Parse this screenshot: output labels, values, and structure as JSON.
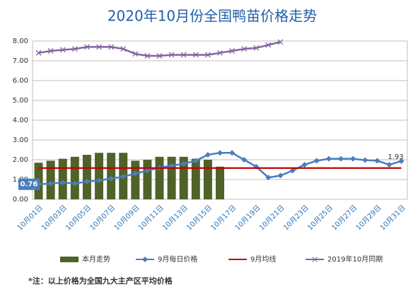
{
  "chart_data": {
    "type": "line",
    "title": "2020年10月份全国鸭苗价格走势",
    "note": "*注：以上价格为全国九大主产区平均价格",
    "categories": [
      "10月01日",
      null,
      "10月03日",
      null,
      "10月05日",
      null,
      "10月07日",
      null,
      "10月09日",
      null,
      "10月11日",
      null,
      "10月13日",
      null,
      "10月15日",
      null,
      "10月17日",
      null,
      "10月19日",
      null,
      "10月21日",
      null,
      "10月23日",
      null,
      "10月25日",
      null,
      "10月27日",
      null,
      "10月29日",
      null,
      "10月31日"
    ],
    "ylim": [
      0,
      8
    ],
    "yticks": [
      {
        "value": 0,
        "label": "0.00"
      },
      {
        "value": 1,
        "label": "1.00"
      },
      {
        "value": 2,
        "label": "2.00"
      },
      {
        "value": 3,
        "label": "3.00"
      },
      {
        "value": 4,
        "label": "4.00"
      },
      {
        "value": 5,
        "label": "5.00"
      },
      {
        "value": 6,
        "label": "6.00"
      },
      {
        "value": 7,
        "label": "7.00"
      },
      {
        "value": 8,
        "label": "8.00"
      }
    ],
    "grid": true,
    "legend": "bottom",
    "series": [
      {
        "name": "本月走势",
        "type": "bar",
        "color": "#4f6228",
        "values": [
          1.85,
          1.95,
          2.05,
          2.15,
          2.25,
          2.35,
          2.35,
          2.35,
          1.95,
          2.0,
          2.15,
          2.15,
          2.15,
          2.05,
          2.0,
          1.65,
          null,
          null,
          null,
          null,
          null,
          null,
          null,
          null,
          null,
          null,
          null,
          null,
          null,
          null,
          null
        ]
      },
      {
        "name": "9月每日价格",
        "type": "line",
        "marker": "diamond",
        "color": "#4a7ebb",
        "values": [
          0.76,
          0.8,
          0.85,
          0.8,
          0.9,
          0.95,
          1.05,
          1.15,
          1.3,
          1.45,
          1.6,
          1.7,
          1.8,
          1.95,
          2.25,
          2.35,
          2.35,
          2.0,
          1.65,
          1.1,
          1.2,
          1.45,
          1.75,
          1.95,
          2.05,
          2.05,
          2.05,
          1.98,
          1.95,
          1.75,
          1.93
        ],
        "value_labels": [
          "0.76",
          null,
          null,
          null,
          null,
          null,
          null,
          null,
          null,
          null,
          null,
          null,
          null,
          null,
          null,
          null,
          null,
          null,
          null,
          null,
          null,
          null,
          null,
          null,
          null,
          null,
          null,
          null,
          null,
          null,
          "1.93"
        ]
      },
      {
        "name": "9月均线",
        "type": "line",
        "marker": "none",
        "color": "#c00000",
        "values": [
          1.58,
          1.58,
          1.58,
          1.58,
          1.58,
          1.58,
          1.58,
          1.58,
          1.58,
          1.58,
          1.58,
          1.58,
          1.58,
          1.58,
          1.58,
          1.58,
          1.58,
          1.58,
          1.58,
          1.58,
          1.58,
          1.58,
          1.58,
          1.58,
          1.58,
          1.58,
          1.58,
          1.58,
          1.58,
          1.58,
          1.58
        ]
      },
      {
        "name": "2019年10月同期",
        "type": "line",
        "marker": "x",
        "color": "#8064a2",
        "values": [
          7.4,
          7.5,
          7.55,
          7.6,
          7.7,
          7.7,
          7.7,
          7.6,
          7.35,
          7.25,
          7.25,
          7.3,
          7.3,
          7.3,
          7.3,
          7.4,
          7.5,
          7.6,
          7.65,
          7.8,
          7.95,
          null,
          null,
          null,
          null,
          null,
          null,
          null,
          null,
          null,
          null
        ]
      }
    ]
  }
}
